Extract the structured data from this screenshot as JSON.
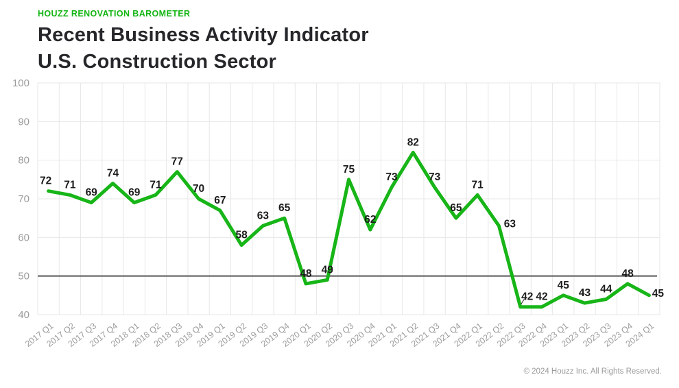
{
  "header": {
    "eyebrow": "HOUZZ RENOVATION BAROMETER",
    "title_line1": "Recent Business Activity Indicator",
    "title_line2": "U.S. Construction Sector"
  },
  "chart_data": {
    "type": "line",
    "title": "Recent Business Activity Indicator",
    "subtitle": "U.S. Construction Sector",
    "categories": [
      "2017 Q1",
      "2017 Q2",
      "2017 Q3",
      "2017 Q4",
      "2018 Q1",
      "2018 Q2",
      "2018 Q3",
      "2018 Q4",
      "2019 Q1",
      "2019 Q2",
      "2019 Q3",
      "2019 Q4",
      "2020 Q1",
      "2020 Q2",
      "2020 Q3",
      "2020 Q4",
      "2021 Q1",
      "2021 Q2",
      "2021 Q3",
      "2021 Q4",
      "2022 Q1",
      "2022 Q2",
      "2022 Q3",
      "2022 Q4",
      "2023 Q1",
      "2023 Q2",
      "2023 Q3",
      "2023 Q4",
      "2024 Q1"
    ],
    "values": [
      72,
      71,
      69,
      74,
      69,
      71,
      77,
      70,
      67,
      58,
      63,
      65,
      48,
      49,
      75,
      62,
      73,
      82,
      73,
      65,
      71,
      63,
      42,
      42,
      45,
      43,
      44,
      48,
      45
    ],
    "xlabel": "",
    "ylabel": "",
    "ylim": [
      40,
      100
    ],
    "yticks": [
      40,
      50,
      60,
      70,
      80,
      90,
      100
    ],
    "reference_line": 50,
    "grid": true,
    "legend": "none",
    "colors": {
      "line": "#17b517",
      "point_label": "#1c1c1c",
      "axis_label": "#9b9b9b",
      "gridline": "#e7e7e7",
      "reference_line": "#565656"
    }
  },
  "footer": {
    "copyright": "© 2024 Houzz Inc. All Rights Reserved."
  }
}
